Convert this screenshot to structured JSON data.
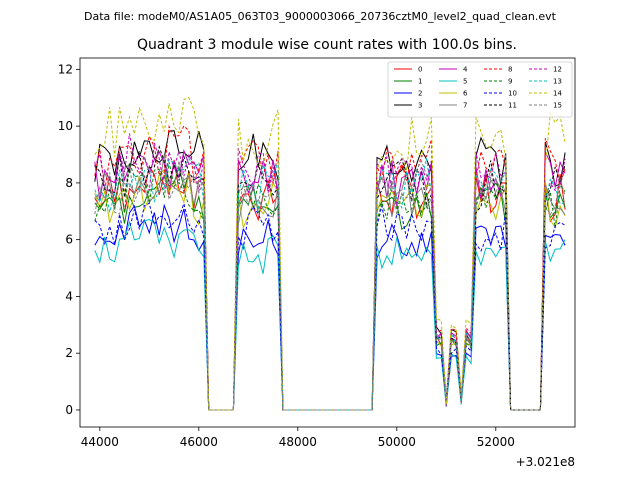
{
  "chart_data": {
    "type": "line",
    "suptitle": "Data file: modeM0/AS1A05_063T03_9000003066_20736cztM0_level2_quad_clean.evt",
    "title": "Quadrant 3 module wise count rates with 100.0s bins.",
    "xlabel": "",
    "ylabel": "",
    "x_offset_label": "+3.021e8",
    "xlim": [
      43600,
      53600
    ],
    "ylim": [
      -0.6,
      12.4
    ],
    "xticks": [
      44000,
      46000,
      48000,
      50000,
      52000
    ],
    "xtick_labels": [
      "44000",
      "46000",
      "48000",
      "50000",
      "52000"
    ],
    "yticks": [
      0,
      2,
      4,
      6,
      8,
      10,
      12
    ],
    "ytick_labels": [
      "0",
      "2",
      "4",
      "6",
      "8",
      "10",
      "12"
    ],
    "legend_position": "top-right",
    "segments": [
      {
        "start": 43900,
        "end": 46100
      },
      {
        "start": 46800,
        "end": 47600
      },
      {
        "start": 49600,
        "end": 50700
      },
      {
        "start": 51550,
        "end": 52200
      },
      {
        "start": 53000,
        "end": 53400
      }
    ],
    "series": [
      {
        "name": "0",
        "color": "#ff0000",
        "style": "solid",
        "level": 7.6
      },
      {
        "name": "1",
        "color": "#008000",
        "style": "solid",
        "level": 7.2
      },
      {
        "name": "2",
        "color": "#0000ff",
        "style": "solid",
        "level": 6.0
      },
      {
        "name": "3",
        "color": "#000000",
        "style": "solid",
        "level": 8.8
      },
      {
        "name": "4",
        "color": "#bf00bf",
        "style": "solid",
        "level": 8.2
      },
      {
        "name": "5",
        "color": "#00bfbf",
        "style": "solid",
        "level": 5.6
      },
      {
        "name": "6",
        "color": "#bfbf00",
        "style": "solid",
        "level": 7.3
      },
      {
        "name": "7",
        "color": "#808080",
        "style": "solid",
        "level": 7.5
      },
      {
        "name": "8",
        "color": "#ff0000",
        "style": "dashed",
        "level": 8.7
      },
      {
        "name": "9",
        "color": "#008000",
        "style": "dashed",
        "level": 7.4
      },
      {
        "name": "10",
        "color": "#0000ff",
        "style": "dashed",
        "level": 6.4
      },
      {
        "name": "11",
        "color": "#000000",
        "style": "dashed",
        "level": 8.0
      },
      {
        "name": "12",
        "color": "#bf00bf",
        "style": "dashed",
        "level": 8.3
      },
      {
        "name": "13",
        "color": "#00bfbf",
        "style": "dashed",
        "level": 7.9
      },
      {
        "name": "14",
        "color": "#bfbf00",
        "style": "dashed",
        "level": 9.6
      },
      {
        "name": "15",
        "color": "#808080",
        "style": "dashed",
        "level": 7.8
      }
    ]
  }
}
